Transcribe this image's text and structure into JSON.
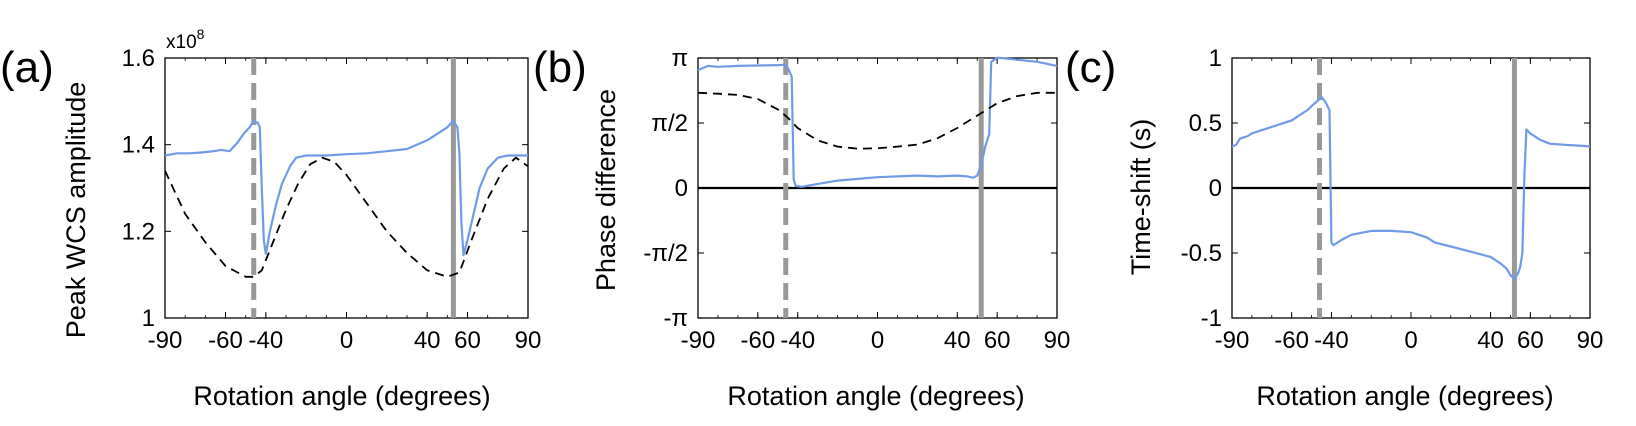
{
  "figure": {
    "panels": [
      {
        "panel_label": "(a)",
        "xlabel": "Rotation angle (degrees)",
        "ylabel": "Peak WCS amplitude",
        "y_exponent": "x10",
        "y_exponent_power": "8",
        "xticks": [
          "-90",
          "-60",
          "-40",
          "0",
          "40",
          "60",
          "90"
        ],
        "yticks": [
          "1",
          "1.2",
          "1.4",
          "1.6"
        ]
      },
      {
        "panel_label": "(b)",
        "xlabel": "Rotation angle (degrees)",
        "ylabel": "Phase difference",
        "xticks": [
          "-90",
          "-60",
          "-40",
          "0",
          "40",
          "60",
          "90"
        ],
        "yticks": [
          "-π",
          "-π/2",
          "0",
          "π/2",
          "π"
        ]
      },
      {
        "panel_label": "(c)",
        "xlabel": "Rotation angle (degrees)",
        "ylabel": "Time-shift (s)",
        "xticks": [
          "-90",
          "-60",
          "-40",
          "0",
          "40",
          "60",
          "90"
        ],
        "yticks": [
          "-1",
          "-0.5",
          "0",
          "0.5",
          "1"
        ]
      }
    ]
  },
  "chart_data": [
    {
      "type": "line",
      "panel": "(a)",
      "xlabel": "Rotation angle (degrees)",
      "ylabel": "Peak WCS amplitude",
      "xlim": [
        -90,
        90
      ],
      "ylim": [
        1.0,
        1.6
      ],
      "y_multiplier": "x10^8",
      "xticks": [
        -90,
        -60,
        -40,
        0,
        40,
        60,
        90
      ],
      "yticks": [
        1,
        1.2,
        1.4,
        1.6
      ],
      "color_solid": "#6f9be6",
      "color_dashed": "#000000",
      "color_vlines": "#999999",
      "vlines": [
        {
          "x": -46,
          "style": "dashed"
        },
        {
          "x": 53,
          "style": "solid"
        }
      ],
      "hlines": [],
      "series": [
        {
          "style": "solid",
          "points": [
            [
              -90,
              1.375
            ],
            [
              -84,
              1.38
            ],
            [
              -78,
              1.38
            ],
            [
              -72,
              1.382
            ],
            [
              -66,
              1.385
            ],
            [
              -62,
              1.388
            ],
            [
              -58,
              1.385
            ],
            [
              -54,
              1.405
            ],
            [
              -51,
              1.425
            ],
            [
              -48,
              1.44
            ],
            [
              -46,
              1.455
            ],
            [
              -44,
              1.45
            ],
            [
              -43,
              1.44
            ],
            [
              -42,
              1.3
            ],
            [
              -41,
              1.18
            ],
            [
              -40,
              1.148
            ],
            [
              -38,
              1.2
            ],
            [
              -35,
              1.26
            ],
            [
              -32,
              1.31
            ],
            [
              -28,
              1.35
            ],
            [
              -25,
              1.37
            ],
            [
              -20,
              1.375
            ],
            [
              -10,
              1.375
            ],
            [
              0,
              1.378
            ],
            [
              10,
              1.38
            ],
            [
              20,
              1.385
            ],
            [
              30,
              1.39
            ],
            [
              40,
              1.41
            ],
            [
              45,
              1.425
            ],
            [
              50,
              1.44
            ],
            [
              53,
              1.455
            ],
            [
              55,
              1.44
            ],
            [
              56,
              1.38
            ],
            [
              57,
              1.22
            ],
            [
              58,
              1.145
            ],
            [
              60,
              1.18
            ],
            [
              63,
              1.24
            ],
            [
              66,
              1.3
            ],
            [
              70,
              1.345
            ],
            [
              75,
              1.37
            ],
            [
              80,
              1.375
            ],
            [
              90,
              1.375
            ]
          ]
        },
        {
          "style": "dashed",
          "points": [
            [
              -90,
              1.34
            ],
            [
              -80,
              1.24
            ],
            [
              -70,
              1.175
            ],
            [
              -60,
              1.12
            ],
            [
              -50,
              1.095
            ],
            [
              -46,
              1.095
            ],
            [
              -42,
              1.11
            ],
            [
              -36,
              1.18
            ],
            [
              -30,
              1.25
            ],
            [
              -24,
              1.31
            ],
            [
              -18,
              1.355
            ],
            [
              -12,
              1.37
            ],
            [
              -6,
              1.36
            ],
            [
              0,
              1.33
            ],
            [
              10,
              1.265
            ],
            [
              20,
              1.2
            ],
            [
              30,
              1.15
            ],
            [
              40,
              1.11
            ],
            [
              50,
              1.095
            ],
            [
              56,
              1.105
            ],
            [
              62,
              1.18
            ],
            [
              70,
              1.275
            ],
            [
              78,
              1.345
            ],
            [
              84,
              1.37
            ],
            [
              90,
              1.35
            ]
          ]
        }
      ]
    },
    {
      "type": "line",
      "panel": "(b)",
      "xlabel": "Rotation angle (degrees)",
      "ylabel": "Phase difference",
      "xlim": [
        -90,
        90
      ],
      "ylim": [
        -3.14159,
        3.14159
      ],
      "xticks": [
        -90,
        -60,
        -40,
        0,
        40,
        60,
        90
      ],
      "yticks": [
        -3.14159,
        -1.5708,
        0,
        1.5708,
        3.14159
      ],
      "color_solid": "#6f9be6",
      "color_dashed": "#000000",
      "color_vlines": "#999999",
      "vlines": [
        {
          "x": -46,
          "style": "dashed"
        },
        {
          "x": 52,
          "style": "solid"
        }
      ],
      "hlines": [
        0
      ],
      "series": [
        {
          "style": "solid",
          "points": [
            [
              -90,
              2.85
            ],
            [
              -85,
              2.95
            ],
            [
              -80,
              2.93
            ],
            [
              -70,
              2.95
            ],
            [
              -60,
              2.96
            ],
            [
              -50,
              2.97
            ],
            [
              -46,
              2.98
            ],
            [
              -45,
              2.9
            ],
            [
              -43,
              2.7
            ],
            [
              -42,
              0.2
            ],
            [
              -41,
              0.05
            ],
            [
              -38,
              0.03
            ],
            [
              -30,
              0.1
            ],
            [
              -20,
              0.18
            ],
            [
              -10,
              0.22
            ],
            [
              0,
              0.26
            ],
            [
              10,
              0.28
            ],
            [
              20,
              0.3
            ],
            [
              30,
              0.28
            ],
            [
              40,
              0.3
            ],
            [
              45,
              0.28
            ],
            [
              48,
              0.25
            ],
            [
              50,
              0.3
            ],
            [
              52,
              0.55
            ],
            [
              54,
              1.0
            ],
            [
              56,
              1.3
            ],
            [
              57,
              3.05
            ],
            [
              60,
              3.15
            ],
            [
              70,
              3.1
            ],
            [
              80,
              3.05
            ],
            [
              90,
              2.95
            ]
          ]
        },
        {
          "style": "dashed",
          "points": [
            [
              -90,
              2.3
            ],
            [
              -80,
              2.28
            ],
            [
              -70,
              2.25
            ],
            [
              -60,
              2.15
            ],
            [
              -50,
              1.9
            ],
            [
              -45,
              1.7
            ],
            [
              -40,
              1.45
            ],
            [
              -30,
              1.15
            ],
            [
              -20,
              1.0
            ],
            [
              -10,
              0.95
            ],
            [
              0,
              0.96
            ],
            [
              10,
              1.0
            ],
            [
              20,
              1.05
            ],
            [
              30,
              1.2
            ],
            [
              40,
              1.45
            ],
            [
              50,
              1.75
            ],
            [
              55,
              1.9
            ],
            [
              60,
              2.05
            ],
            [
              70,
              2.22
            ],
            [
              80,
              2.3
            ],
            [
              90,
              2.3
            ]
          ]
        }
      ]
    },
    {
      "type": "line",
      "panel": "(c)",
      "xlabel": "Rotation angle (degrees)",
      "ylabel": "Time-shift (s)",
      "xlim": [
        -90,
        90
      ],
      "ylim": [
        -1,
        1
      ],
      "xticks": [
        -90,
        -60,
        -40,
        0,
        40,
        60,
        90
      ],
      "yticks": [
        -1,
        -0.5,
        0,
        0.5,
        1
      ],
      "color_solid": "#6f9be6",
      "color_vlines": "#999999",
      "vlines": [
        {
          "x": -46,
          "style": "dashed"
        },
        {
          "x": 52,
          "style": "solid"
        }
      ],
      "hlines": [
        0
      ],
      "series": [
        {
          "style": "solid",
          "points": [
            [
              -90,
              0.32
            ],
            [
              -88,
              0.33
            ],
            [
              -86,
              0.38
            ],
            [
              -82,
              0.4
            ],
            [
              -80,
              0.42
            ],
            [
              -76,
              0.44
            ],
            [
              -72,
              0.46
            ],
            [
              -66,
              0.49
            ],
            [
              -60,
              0.52
            ],
            [
              -56,
              0.56
            ],
            [
              -52,
              0.6
            ],
            [
              -50,
              0.63
            ],
            [
              -47,
              0.67
            ],
            [
              -45,
              0.7
            ],
            [
              -43,
              0.66
            ],
            [
              -41,
              0.6
            ],
            [
              -40,
              -0.42
            ],
            [
              -39,
              -0.44
            ],
            [
              -35,
              -0.4
            ],
            [
              -30,
              -0.36
            ],
            [
              -20,
              -0.33
            ],
            [
              -10,
              -0.33
            ],
            [
              0,
              -0.34
            ],
            [
              8,
              -0.38
            ],
            [
              12,
              -0.42
            ],
            [
              20,
              -0.45
            ],
            [
              30,
              -0.49
            ],
            [
              40,
              -0.53
            ],
            [
              45,
              -0.58
            ],
            [
              48,
              -0.62
            ],
            [
              50,
              -0.67
            ],
            [
              52,
              -0.7
            ],
            [
              54,
              -0.65
            ],
            [
              55,
              -0.6
            ],
            [
              56,
              -0.5
            ],
            [
              57,
              0.1
            ],
            [
              58,
              0.45
            ],
            [
              60,
              0.42
            ],
            [
              65,
              0.37
            ],
            [
              70,
              0.34
            ],
            [
              80,
              0.33
            ],
            [
              90,
              0.32
            ]
          ]
        }
      ]
    }
  ]
}
